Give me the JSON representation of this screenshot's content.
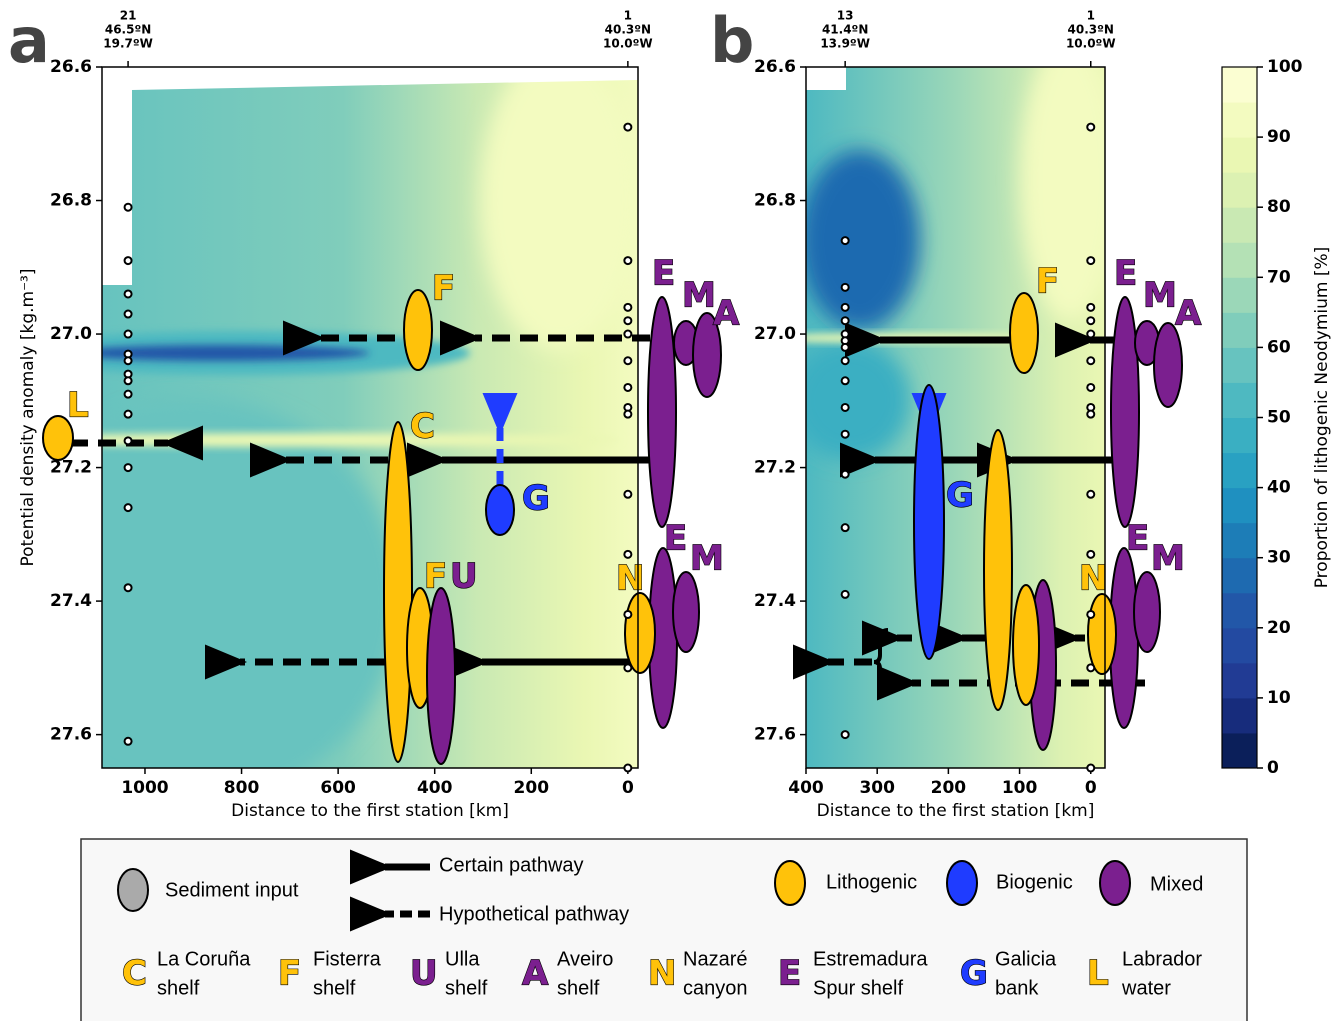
{
  "chart_data": [
    {
      "type": "contour",
      "panel_label": "a",
      "xlabel": "Distance to the first station [km]",
      "ylabel": "Potential density anomaly [kg.m⁻³]",
      "xlim": [
        1089,
        -21
      ],
      "xticks": [
        1000,
        800,
        600,
        400,
        200,
        0
      ],
      "ylim": [
        27.65,
        26.6
      ],
      "yticks": [
        26.6,
        26.8,
        {
          "value": 27,
          "label": "27.0"
        },
        27.2,
        27.4,
        27.6
      ],
      "stations": [
        {
          "x": 1035,
          "label": [
            "21",
            "46.5ºN",
            "19.7ºW"
          ]
        },
        {
          "x": 0,
          "label": [
            "1",
            "40.3ºN",
            "10.0ºW"
          ]
        }
      ],
      "x": [
        1035,
        1035,
        1035,
        1035,
        1035,
        1035,
        1035,
        1035,
        1035,
        1035,
        1035,
        1035,
        1035,
        1035,
        1035,
        1035,
        0,
        0,
        0,
        0,
        0,
        0,
        0,
        0,
        0,
        0,
        0,
        0,
        0,
        0
      ],
      "y": [
        26.81,
        26.89,
        26.94,
        26.97,
        27.0,
        27.03,
        27.04,
        27.06,
        27.07,
        27.09,
        27.12,
        27.16,
        27.2,
        27.26,
        27.38,
        27.61,
        26.69,
        26.89,
        26.96,
        26.98,
        27.0,
        27.04,
        27.08,
        27.11,
        27.12,
        27.24,
        27.33,
        27.42,
        27.5,
        27.65
      ],
      "annotations": [
        "F",
        "L",
        "C",
        "G",
        "F",
        "U",
        "E",
        "M",
        "A",
        "N",
        "E",
        "M"
      ]
    },
    {
      "type": "contour",
      "panel_label": "b",
      "xlabel": "Distance to the first station [km]",
      "xlim": [
        400,
        -20
      ],
      "xticks": [
        400,
        300,
        200,
        100,
        0
      ],
      "ylim": [
        27.65,
        26.6
      ],
      "yticks": [
        26.6,
        26.8,
        {
          "value": 27,
          "label": "27.0"
        },
        27.2,
        27.4,
        27.6
      ],
      "stations": [
        {
          "x": 345,
          "label": [
            "13",
            "41.4ºN",
            "13.9ºW"
          ]
        },
        {
          "x": 0,
          "label": [
            "1",
            "40.3ºN",
            "10.0ºW"
          ]
        }
      ],
      "x": [
        345,
        345,
        345,
        345,
        345,
        345,
        345,
        345,
        345,
        345,
        345,
        345,
        345,
        345,
        345,
        0,
        0,
        0,
        0,
        0,
        0,
        0,
        0,
        0,
        0,
        0,
        0,
        0,
        0
      ],
      "y": [
        26.86,
        26.93,
        26.96,
        26.98,
        27.0,
        27.01,
        27.02,
        27.04,
        27.07,
        27.11,
        27.15,
        27.21,
        27.29,
        27.39,
        27.6,
        26.69,
        26.89,
        26.96,
        26.98,
        27.0,
        27.04,
        27.08,
        27.11,
        27.12,
        27.24,
        27.33,
        27.42,
        27.5,
        27.65
      ],
      "annotations": [
        "F",
        "G",
        "E",
        "M",
        "A",
        "N",
        "E",
        "M"
      ]
    },
    {
      "type": "colorbar",
      "ylabel": "Proportion of lithogenic Neodymium [%]",
      "ylim": [
        0,
        100
      ],
      "yticks": [
        0,
        10,
        20,
        30,
        40,
        50,
        60,
        70,
        80,
        90,
        100
      ],
      "colors": [
        "#0b1f5a",
        "#172c7c",
        "#213b94",
        "#234aa1",
        "#2257a8",
        "#1e6ab0",
        "#1d7db7",
        "#1f90c0",
        "#29a1c2",
        "#3aafc2",
        "#4eb9c1",
        "#67c3bf",
        "#80cdbb",
        "#9bd7b8",
        "#b4e1b5",
        "#c9e9b3",
        "#dcf1b2",
        "#eaf7b3",
        "#f3fbc0",
        "#fbfed2"
      ]
    }
  ],
  "legend": {
    "sediment": "Sediment input",
    "certain": "Certain pathway",
    "hypothetical": "Hypothetical pathway",
    "lithogenic": "Lithogenic",
    "biogenic": "Biogenic",
    "mixed": "Mixed",
    "sources": [
      {
        "letter": "C",
        "name": [
          "La Coruña",
          "shelf"
        ]
      },
      {
        "letter": "F",
        "name": [
          "Fisterra",
          "shelf"
        ]
      },
      {
        "letter": "U",
        "name": [
          "Ulla",
          "shelf"
        ]
      },
      {
        "letter": "A",
        "name": [
          "Aveiro",
          "shelf"
        ]
      },
      {
        "letter": "N",
        "name": [
          "Nazaré",
          "canyon"
        ]
      },
      {
        "letter": "E",
        "name": [
          "Estremadura",
          "Spur shelf"
        ]
      },
      {
        "letter": "G",
        "name": [
          "Galicia",
          "bank"
        ]
      },
      {
        "letter": "L",
        "name": [
          "Labrador",
          "water"
        ]
      }
    ]
  }
}
